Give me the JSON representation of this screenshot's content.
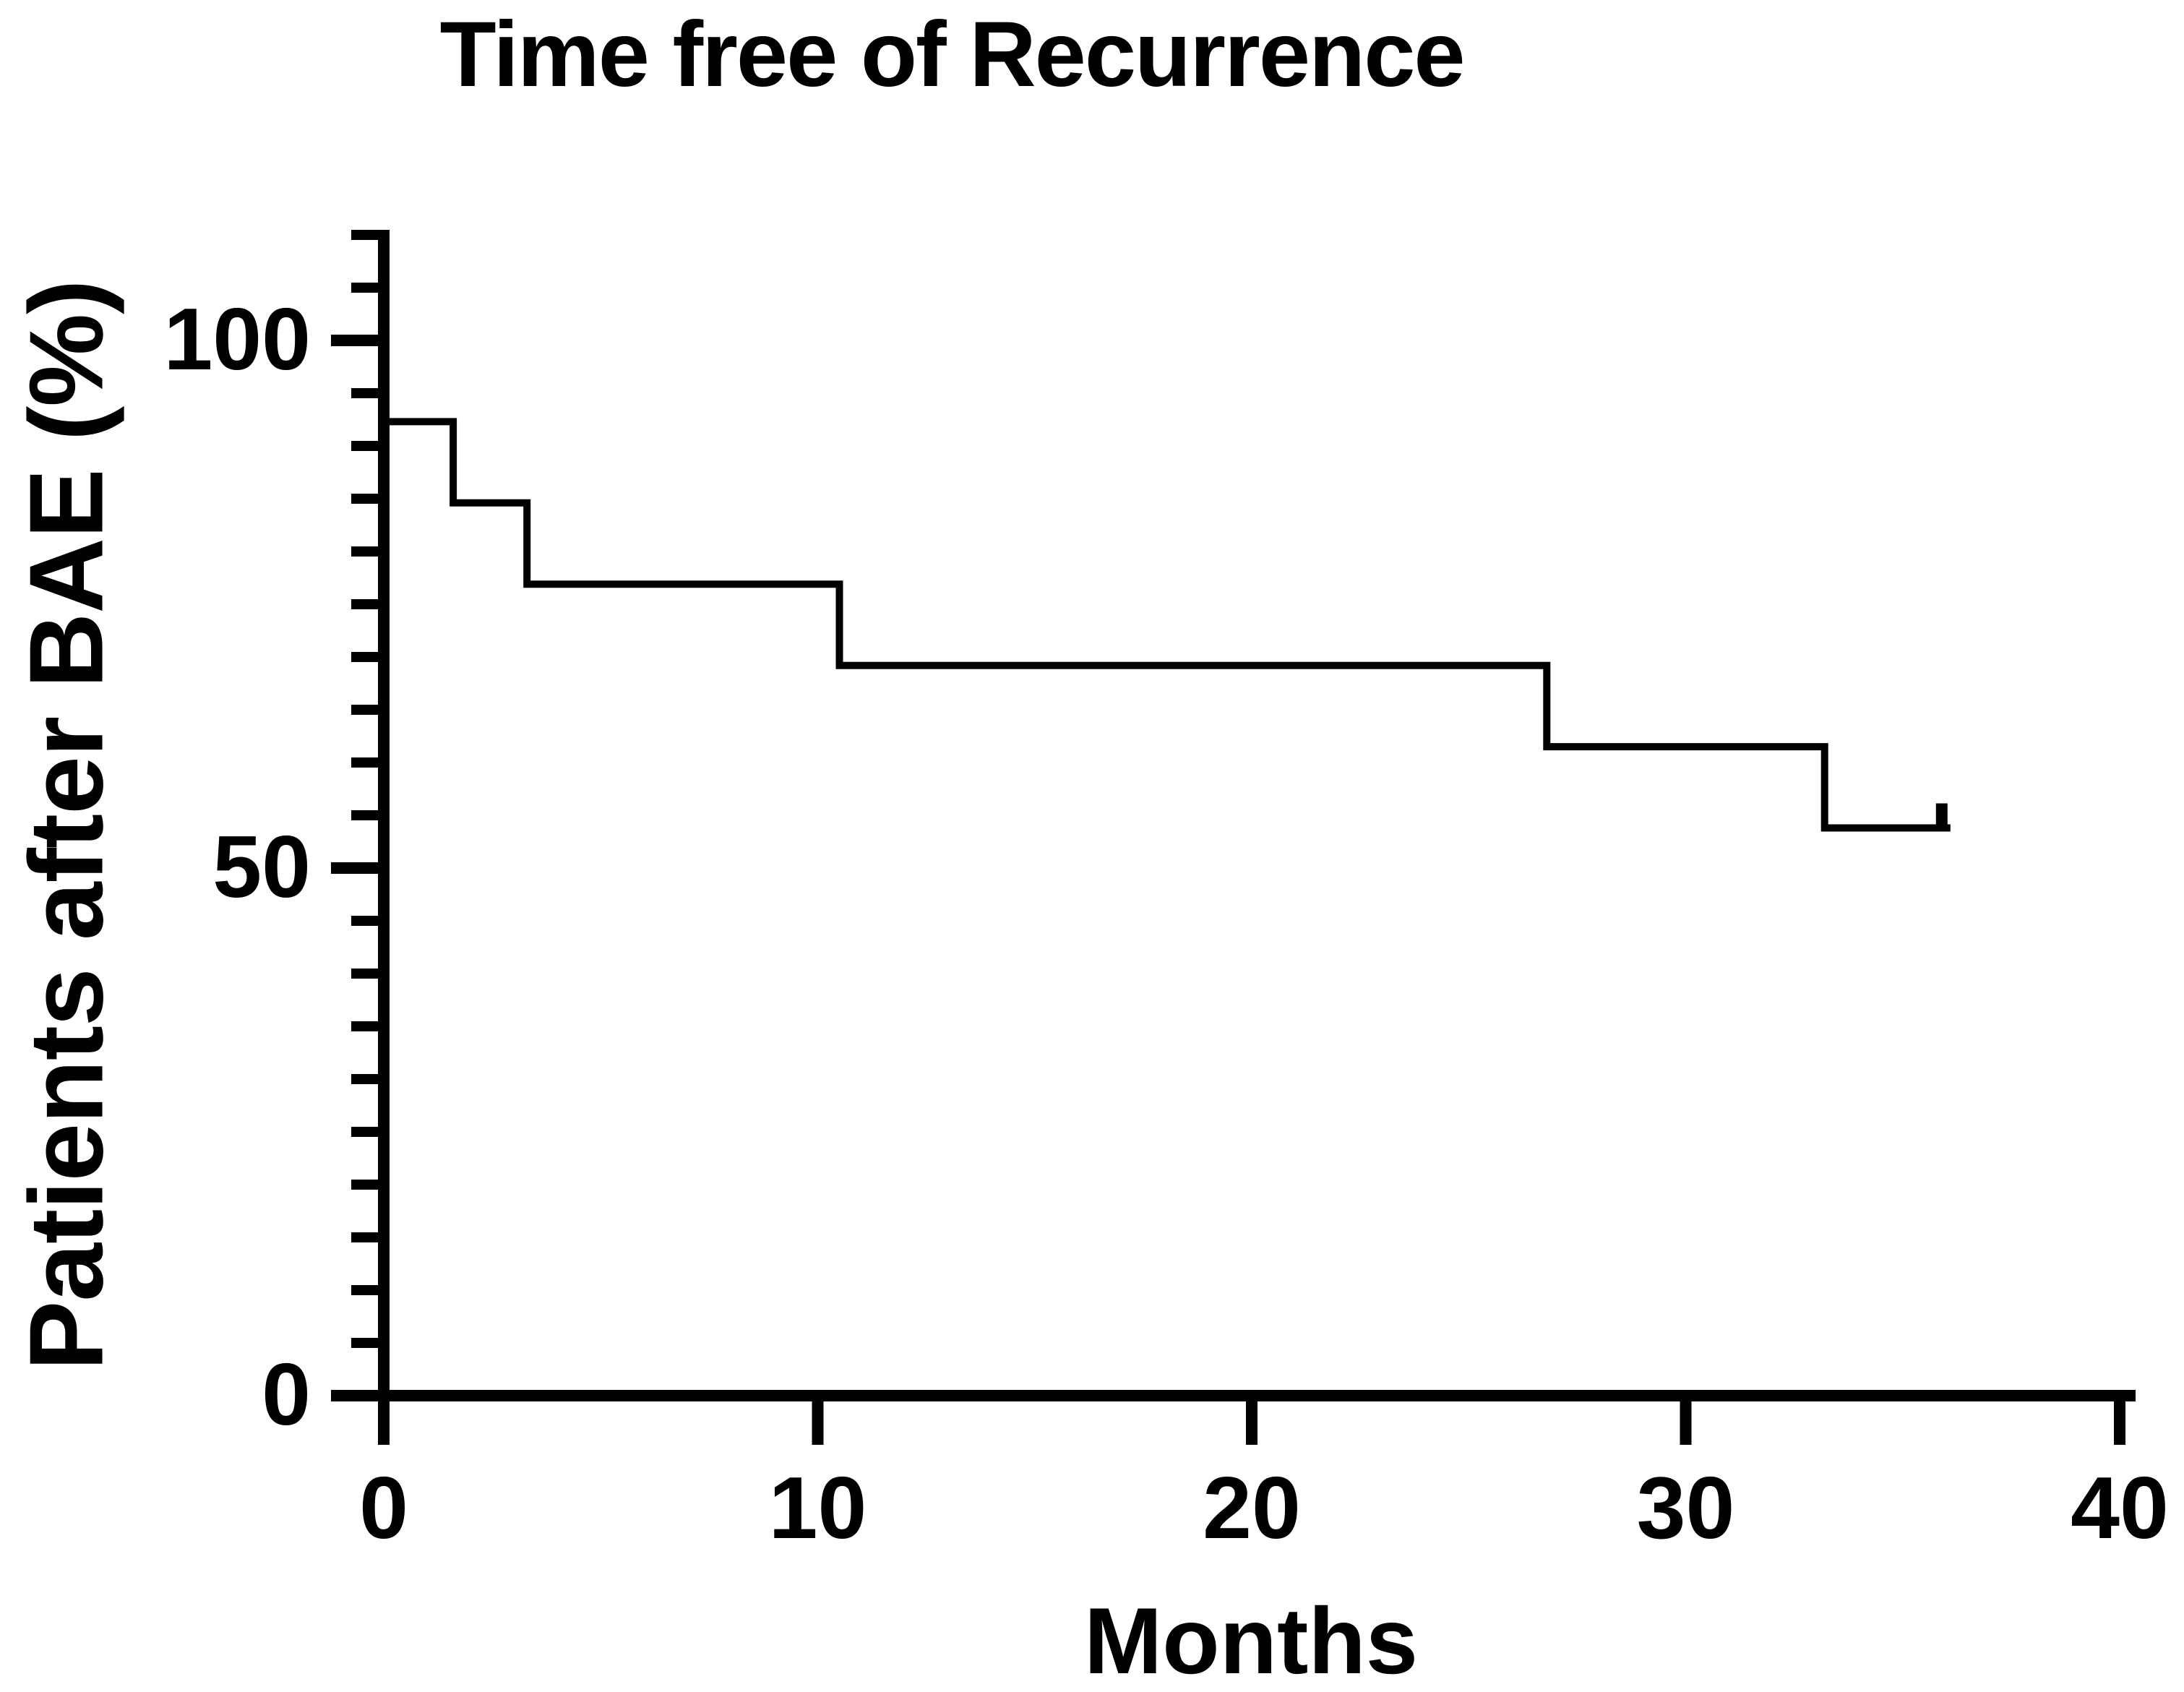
{
  "figure": {
    "background": "#ffffff",
    "foreground": "#000000"
  },
  "chart_data": {
    "type": "line",
    "subtype": "kaplan-meier-step-curve",
    "title": "Time free of Recurrence",
    "xlabel": "Months",
    "ylabel": "Patients after BAE (%)",
    "xlim": [
      0,
      40
    ],
    "ylim": [
      0,
      110
    ],
    "grid": false,
    "legend": "none",
    "x_ticks": [
      {
        "value": 0,
        "label": "0"
      },
      {
        "value": 10,
        "label": "10"
      },
      {
        "value": 20,
        "label": "20"
      },
      {
        "value": 30,
        "label": "30"
      },
      {
        "value": 40,
        "label": "40"
      }
    ],
    "y_major_ticks": [
      {
        "value": 0,
        "label": "0"
      },
      {
        "value": 50,
        "label": "50"
      },
      {
        "value": 100,
        "label": "100"
      }
    ],
    "y_minor_ticks": [
      5,
      10,
      15,
      20,
      25,
      30,
      35,
      40,
      45,
      55,
      60,
      65,
      70,
      75,
      80,
      85,
      90,
      95,
      105,
      110
    ],
    "series": [
      {
        "name": "Time free of Recurrence",
        "color": "#000000",
        "step_points": [
          [
            0,
            92.3
          ],
          [
            1.6,
            92.3
          ],
          [
            1.6,
            84.6
          ],
          [
            3.3,
            84.6
          ],
          [
            3.3,
            76.9
          ],
          [
            10.5,
            76.9
          ],
          [
            10.5,
            69.2
          ],
          [
            26.8,
            69.2
          ],
          [
            26.8,
            61.5
          ],
          [
            33.2,
            61.5
          ],
          [
            33.2,
            53.8
          ],
          [
            36.1,
            53.8
          ]
        ],
        "censor_marks": [
          [
            35.9,
            53.8
          ]
        ]
      }
    ]
  }
}
